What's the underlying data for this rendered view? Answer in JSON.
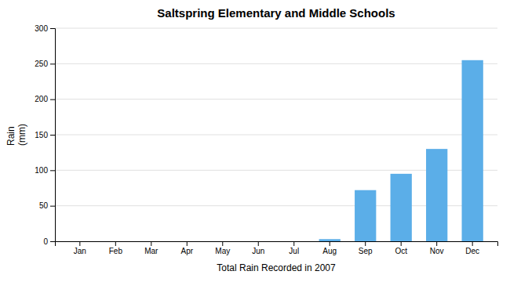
{
  "chart_data": {
    "type": "bar",
    "title": "Saltspring Elementary and Middle Schools",
    "xlabel": "Total Rain Recorded in 2007",
    "ylabel": "Rain \n(mm)",
    "categories": [
      "Jan",
      "Feb",
      "Mar",
      "Apr",
      "May",
      "Jun",
      "Jul",
      "Aug",
      "Sep",
      "Oct",
      "Nov",
      "Dec"
    ],
    "values": [
      0,
      0,
      0,
      0,
      0,
      0,
      0,
      3,
      72,
      95,
      130,
      255
    ],
    "color": "#5BAEE8",
    "ylim": [
      0,
      300
    ],
    "yticks": [
      0,
      50,
      100,
      150,
      200,
      250,
      300
    ],
    "grid": true
  }
}
